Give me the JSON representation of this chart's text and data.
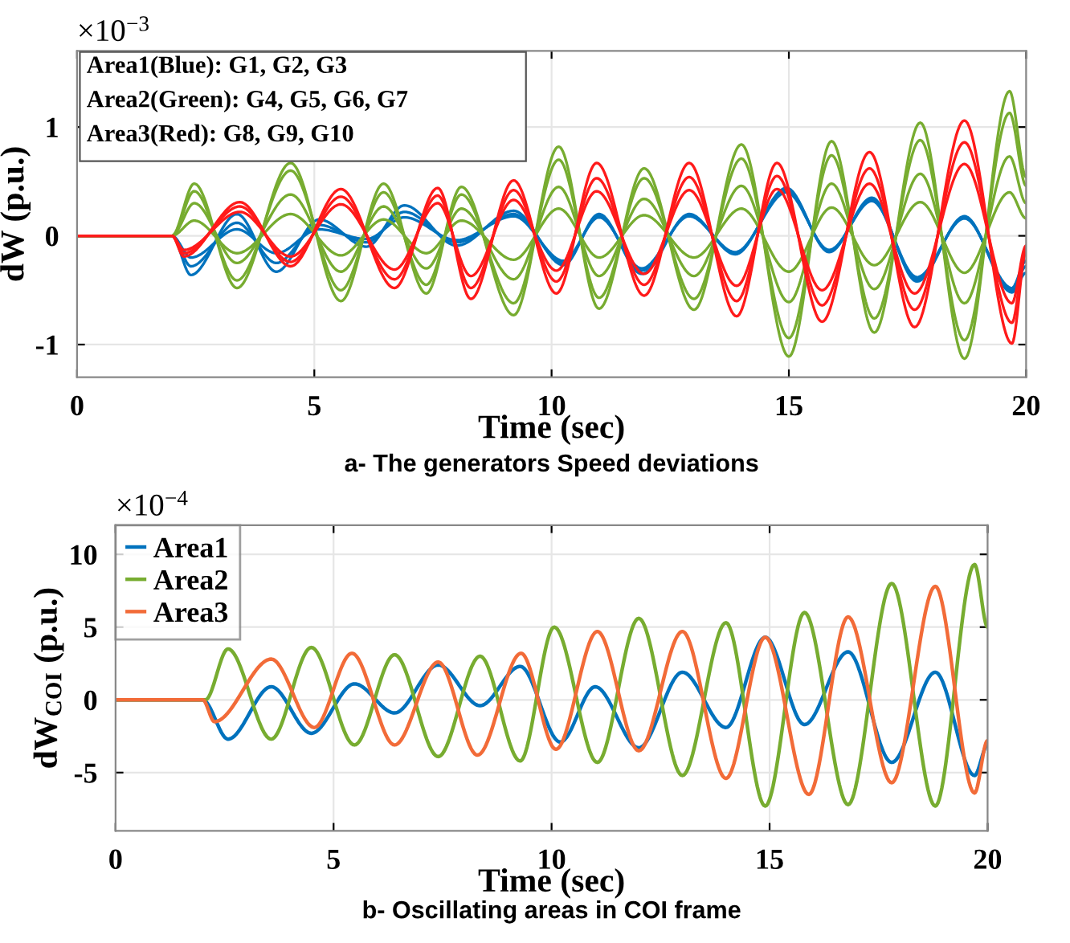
{
  "chart_data": [
    {
      "type": "line",
      "title": "a- The generators Speed deviations",
      "xlabel": "Time (sec)",
      "ylabel": "dW (p.u.)",
      "annotations": [
        "×10$^{−3}$",
        "Area1(Blue): G1, G2, G3",
        "Area2(Green): G4, G5, G6, G7",
        "Area3(Red): G8, G9, G10"
      ],
      "xlim": [
        0,
        20
      ],
      "ylim": [
        -1.3,
        1.7
      ],
      "xticks": [
        0,
        5,
        10,
        15,
        20
      ],
      "yticks": [
        -1,
        0,
        1
      ],
      "grid": true,
      "series": [
        {
          "color": "#0072bd",
          "x": [
            0,
            2.0,
            2.4,
            3.37,
            4.2,
            5.1,
            6.1,
            6.9,
            8.0,
            9.2,
            10.25,
            11.0,
            11.9,
            12.9,
            13.87,
            14.95,
            15.85,
            16.75,
            17.7,
            18.7,
            19.7,
            20
          ],
          "values": [
            0,
            0,
            -0.36,
            0.2,
            -0.33,
            0.15,
            -0.1,
            0.28,
            -0.09,
            0.23,
            -0.27,
            0.2,
            -0.35,
            0.2,
            -0.17,
            0.44,
            -0.15,
            0.35,
            -0.42,
            0.18,
            -0.52,
            -0.34
          ]
        },
        {
          "color": "#0072bd",
          "x": [
            0,
            2.0,
            2.4,
            3.37,
            4.2,
            5.1,
            6.1,
            6.9,
            8.0,
            9.2,
            10.25,
            11.0,
            11.9,
            12.9,
            13.87,
            14.95,
            15.85,
            16.75,
            17.7,
            18.7,
            19.7,
            20
          ],
          "values": [
            0,
            0,
            -0.28,
            0.12,
            -0.25,
            0.1,
            -0.06,
            0.22,
            -0.06,
            0.2,
            -0.25,
            0.18,
            -0.32,
            0.19,
            -0.16,
            0.42,
            -0.14,
            0.33,
            -0.4,
            0.17,
            -0.5,
            -0.28
          ]
        },
        {
          "color": "#0072bd",
          "x": [
            0,
            2.0,
            2.4,
            3.37,
            4.2,
            5.1,
            6.1,
            6.9,
            8.0,
            9.2,
            10.25,
            11.0,
            11.9,
            12.9,
            13.87,
            14.95,
            15.85,
            16.75,
            17.7,
            18.7,
            19.7,
            20
          ],
          "values": [
            0,
            0,
            -0.2,
            0.06,
            -0.16,
            0.06,
            -0.03,
            0.17,
            -0.04,
            0.18,
            -0.23,
            0.17,
            -0.3,
            0.18,
            -0.15,
            0.4,
            -0.13,
            0.32,
            -0.38,
            0.16,
            -0.48,
            -0.23
          ]
        },
        {
          "color": "#77ac30",
          "x": [
            0,
            2.0,
            2.47,
            3.37,
            4.5,
            5.56,
            6.46,
            7.36,
            8.1,
            9.2,
            10.15,
            11.0,
            11.95,
            13.0,
            14.0,
            15.0,
            15.9,
            16.8,
            17.77,
            18.7,
            19.65,
            20
          ],
          "values": [
            0,
            0,
            0.48,
            -0.48,
            0.67,
            -0.6,
            0.48,
            -0.53,
            0.45,
            -0.73,
            0.82,
            -0.67,
            0.62,
            -0.68,
            0.84,
            -1.11,
            0.87,
            -0.89,
            1.04,
            -1.13,
            1.33,
            0.54
          ]
        },
        {
          "color": "#77ac30",
          "x": [
            0,
            2.0,
            2.47,
            3.37,
            4.5,
            5.56,
            6.46,
            7.36,
            8.1,
            9.2,
            10.15,
            11.0,
            11.95,
            13.0,
            14.0,
            15.0,
            15.9,
            16.8,
            17.77,
            18.7,
            19.65,
            20
          ],
          "values": [
            0,
            0,
            0.41,
            -0.41,
            0.6,
            -0.5,
            0.4,
            -0.45,
            0.38,
            -0.62,
            0.7,
            -0.57,
            0.53,
            -0.58,
            0.71,
            -0.94,
            0.74,
            -0.76,
            0.88,
            -0.96,
            1.13,
            0.46
          ]
        },
        {
          "color": "#77ac30",
          "x": [
            0,
            2.0,
            2.47,
            3.37,
            4.5,
            5.56,
            6.46,
            7.36,
            8.1,
            9.2,
            10.15,
            11.0,
            11.95,
            13.0,
            14.0,
            15.0,
            15.9,
            16.8,
            17.77,
            18.7,
            19.65,
            20
          ],
          "values": [
            0,
            0,
            0.3,
            -0.25,
            0.38,
            -0.33,
            0.27,
            -0.3,
            0.25,
            -0.4,
            0.45,
            -0.37,
            0.34,
            -0.37,
            0.46,
            -0.61,
            0.48,
            -0.49,
            0.57,
            -0.62,
            0.73,
            0.3
          ]
        },
        {
          "color": "#77ac30",
          "x": [
            0,
            2.0,
            2.47,
            3.37,
            4.5,
            5.56,
            6.46,
            7.36,
            8.1,
            9.2,
            10.15,
            11.0,
            11.95,
            13.0,
            14.0,
            15.0,
            15.9,
            16.8,
            17.77,
            18.7,
            19.65,
            20
          ],
          "values": [
            0,
            0,
            0.14,
            -0.16,
            0.2,
            -0.18,
            0.15,
            -0.16,
            0.14,
            -0.22,
            0.25,
            -0.2,
            0.19,
            -0.2,
            0.25,
            -0.33,
            0.26,
            -0.27,
            0.31,
            -0.34,
            0.4,
            0.16
          ]
        },
        {
          "color": "#ff1a1a",
          "x": [
            0,
            2.0,
            2.25,
            3.43,
            4.5,
            5.56,
            6.69,
            7.6,
            8.3,
            9.2,
            10.1,
            10.95,
            11.95,
            12.9,
            13.9,
            14.75,
            15.7,
            16.7,
            17.65,
            18.7,
            19.7,
            20
          ],
          "values": [
            0,
            0,
            -0.19,
            0.31,
            -0.28,
            0.43,
            -0.48,
            0.44,
            -0.58,
            0.51,
            -0.53,
            0.67,
            -0.55,
            0.67,
            -0.74,
            0.67,
            -0.79,
            0.77,
            -0.84,
            1.06,
            -0.99,
            -0.15
          ]
        },
        {
          "color": "#ff1a1a",
          "x": [
            0,
            2.0,
            2.25,
            3.43,
            4.5,
            5.56,
            6.69,
            7.6,
            8.3,
            9.2,
            10.1,
            10.95,
            11.95,
            12.9,
            13.9,
            14.75,
            15.7,
            16.7,
            17.65,
            18.7,
            19.7,
            20
          ],
          "values": [
            0,
            0,
            -0.16,
            0.27,
            -0.24,
            0.36,
            -0.4,
            0.37,
            -0.48,
            0.42,
            -0.42,
            0.53,
            -0.45,
            0.54,
            -0.6,
            0.55,
            -0.64,
            0.62,
            -0.68,
            0.86,
            -0.8,
            -0.12
          ]
        },
        {
          "color": "#ff1a1a",
          "x": [
            0,
            2.0,
            2.25,
            3.43,
            4.5,
            5.56,
            6.69,
            7.6,
            8.3,
            9.2,
            10.1,
            10.95,
            11.95,
            12.9,
            13.9,
            14.75,
            15.7,
            16.7,
            17.65,
            18.7,
            19.7,
            20
          ],
          "values": [
            0,
            0,
            -0.13,
            0.22,
            -0.19,
            0.29,
            -0.31,
            0.3,
            -0.37,
            0.33,
            -0.32,
            0.41,
            -0.35,
            0.42,
            -0.46,
            0.43,
            -0.5,
            0.48,
            -0.53,
            0.66,
            -0.62,
            -0.09
          ]
        }
      ]
    },
    {
      "type": "line",
      "title": "b- Oscillating areas in COI frame",
      "xlabel": "Time (sec)",
      "ylabel": "dW$_{COI}$ (p.u.)",
      "annotations": [
        "×10$^{−4}$"
      ],
      "xlim": [
        0,
        20
      ],
      "ylim": [
        -9,
        12
      ],
      "xticks": [
        0,
        5,
        10,
        15,
        20
      ],
      "yticks": [
        -5,
        0,
        5,
        10
      ],
      "grid": true,
      "legend": "top left",
      "series": [
        {
          "name": "Area1",
          "color": "#0072bd",
          "x": [
            0,
            2.0,
            2.58,
            3.57,
            4.49,
            5.48,
            6.4,
            7.4,
            8.36,
            9.28,
            10.2,
            11.0,
            12.0,
            13.0,
            14.0,
            14.9,
            15.8,
            16.8,
            17.8,
            18.8,
            19.7,
            20
          ],
          "values": [
            0,
            0,
            -2.7,
            0.9,
            -2.3,
            1.1,
            -0.9,
            2.4,
            -0.4,
            2.3,
            -2.9,
            0.9,
            -3.3,
            1.9,
            -1.9,
            4.3,
            -1.7,
            3.3,
            -4.3,
            1.9,
            -5.2,
            -3.1
          ]
        },
        {
          "name": "Area2",
          "color": "#77ac30",
          "x": [
            0,
            2.06,
            2.58,
            3.57,
            4.49,
            5.48,
            6.4,
            7.4,
            8.36,
            9.28,
            10.06,
            11.05,
            12.0,
            13.0,
            14.0,
            14.9,
            15.8,
            16.8,
            17.8,
            18.8,
            19.7,
            20
          ],
          "values": [
            0,
            0,
            3.5,
            -2.7,
            3.6,
            -3.1,
            3.1,
            -3.9,
            3.0,
            -4.2,
            5.0,
            -4.3,
            5.6,
            -5.2,
            5.3,
            -7.3,
            6.0,
            -7.2,
            8.0,
            -7.3,
            9.3,
            5.0
          ]
        },
        {
          "name": "Area3",
          "color": "#f26b38",
          "x": [
            0,
            2.0,
            2.27,
            3.57,
            4.56,
            5.42,
            6.4,
            7.4,
            8.3,
            9.3,
            10.1,
            11.05,
            12.0,
            13.0,
            14.0,
            14.9,
            15.9,
            16.8,
            17.8,
            18.8,
            19.7,
            20
          ],
          "values": [
            0,
            0,
            -1.5,
            2.8,
            -1.9,
            3.2,
            -3.1,
            2.6,
            -3.8,
            3.2,
            -3.4,
            4.7,
            -3.5,
            4.7,
            -5.4,
            4.3,
            -6.5,
            5.7,
            -5.7,
            7.8,
            -6.4,
            -2.8
          ]
        }
      ]
    }
  ]
}
